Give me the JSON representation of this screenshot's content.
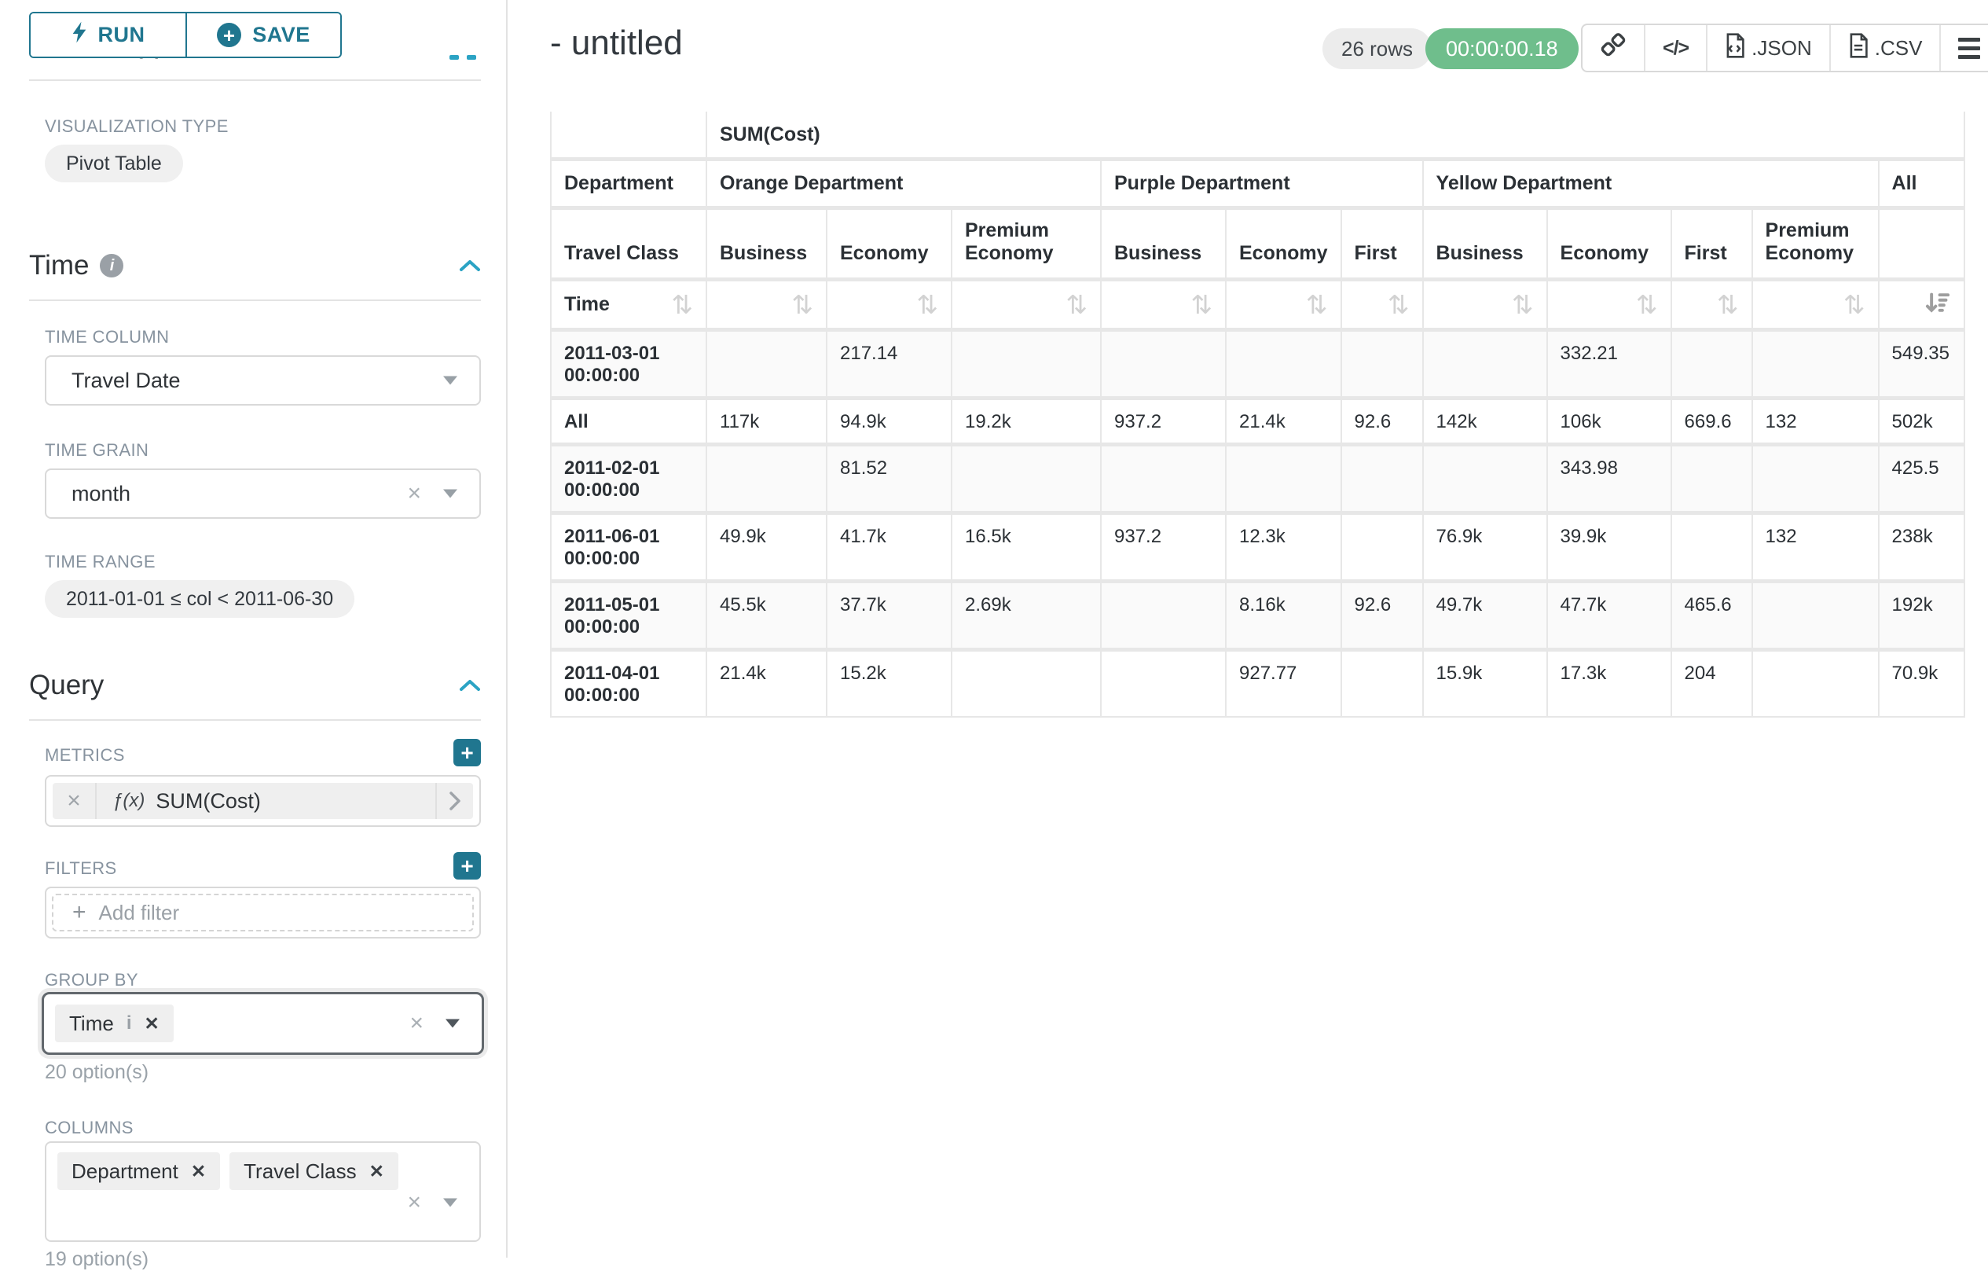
{
  "sidebar": {
    "run_label": "RUN",
    "save_label": "SAVE",
    "cut_heading": "Chart Type",
    "viz": {
      "label": "VISUALIZATION TYPE",
      "value": "Pivot Table"
    },
    "time": {
      "heading": "Time",
      "time_column_label": "TIME COLUMN",
      "time_column_value": "Travel Date",
      "time_grain_label": "TIME GRAIN",
      "time_grain_value": "month",
      "time_range_label": "TIME RANGE",
      "time_range_value": "2011-01-01 ≤ col < 2011-06-30"
    },
    "query": {
      "heading": "Query",
      "metrics_label": "METRICS",
      "metric_fx": "ƒ(x)",
      "metric_value": "SUM(Cost)",
      "filters_label": "FILTERS",
      "add_filter_placeholder": "Add filter",
      "group_by_label": "GROUP BY",
      "group_by_tags": [
        "Time"
      ],
      "group_by_options_hint": "20 option(s)",
      "columns_label": "COLUMNS",
      "columns_tags": [
        "Department",
        "Travel Class"
      ],
      "columns_options_hint": "19 option(s)"
    }
  },
  "header": {
    "title": "- untitled",
    "rows_badge": "26 rows",
    "timer": "00:00:00.18",
    "export_json_label": ".JSON",
    "export_csv_label": ".CSV",
    "code_glyph": "</>"
  },
  "table": {
    "metric_header": "SUM(Cost)",
    "dept_label": "Department",
    "class_label": "Travel Class",
    "time_label": "Time",
    "groups": [
      {
        "name": "Orange Department",
        "span": 3
      },
      {
        "name": "Purple Department",
        "span": 3
      },
      {
        "name": "Yellow Department",
        "span": 4
      },
      {
        "name": "All",
        "span": 1
      }
    ],
    "classes": [
      "Business",
      "Economy",
      "Premium Economy",
      "Business",
      "Economy",
      "First",
      "Business",
      "Economy",
      "First",
      "Premium Economy",
      ""
    ],
    "rows": [
      {
        "label": "2011-03-01 00:00:00",
        "shaded": true,
        "values": [
          "",
          "217.14",
          "",
          "",
          "",
          "",
          "",
          "332.21",
          "",
          "",
          "549.35"
        ]
      },
      {
        "label": "All",
        "shaded": false,
        "values": [
          "117k",
          "94.9k",
          "19.2k",
          "937.2",
          "21.4k",
          "92.6",
          "142k",
          "106k",
          "669.6",
          "132",
          "502k"
        ]
      },
      {
        "label": "2011-02-01 00:00:00",
        "shaded": true,
        "values": [
          "",
          "81.52",
          "",
          "",
          "",
          "",
          "",
          "343.98",
          "",
          "",
          "425.5"
        ]
      },
      {
        "label": "2011-06-01 00:00:00",
        "shaded": false,
        "values": [
          "49.9k",
          "41.7k",
          "16.5k",
          "937.2",
          "12.3k",
          "",
          "76.9k",
          "39.9k",
          "",
          "132",
          "238k"
        ]
      },
      {
        "label": "2011-05-01 00:00:00",
        "shaded": true,
        "values": [
          "45.5k",
          "37.7k",
          "2.69k",
          "",
          "8.16k",
          "92.6",
          "49.7k",
          "47.7k",
          "465.6",
          "",
          "192k"
        ]
      },
      {
        "label": "2011-04-01 00:00:00",
        "shaded": false,
        "values": [
          "21.4k",
          "15.2k",
          "",
          "",
          "927.77",
          "",
          "15.9k",
          "17.3k",
          "204",
          "",
          "70.9k"
        ]
      }
    ]
  },
  "colors": {
    "accent": "#20768f",
    "section_chevron": "#2ba3c4",
    "timer_green": "#6fbe8c"
  }
}
